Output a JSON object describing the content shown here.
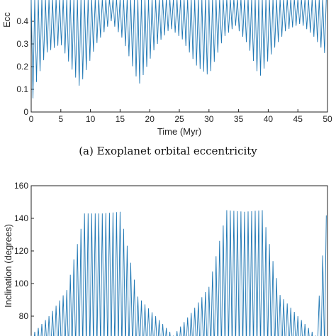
{
  "chart_data": [
    {
      "type": "line",
      "title": "",
      "caption": "(a)  Exoplanet orbital eccentricity",
      "xlabel": "Time (Myr)",
      "ylabel": "Ecc",
      "xlim": [
        0,
        50
      ],
      "ylim": [
        0,
        0.5
      ],
      "xticks": [
        "0",
        "5",
        "10",
        "15",
        "20",
        "25",
        "30",
        "35",
        "40",
        "45",
        "50"
      ],
      "yticks": [
        "0",
        "0.1",
        "0.2",
        "0.3",
        "0.4"
      ],
      "color": "#1f77b4",
      "grid": false,
      "legend": "none",
      "series": [
        {
          "envelope_upper": 0.5,
          "envelope_lower_x": [
            0,
            0.5,
            2.5,
            5.0,
            8.2,
            11.0,
            13.5,
            15.5,
            18.2,
            21.0,
            23.5,
            25.5,
            28.0,
            30.0,
            32.5,
            34.5,
            36.5,
            38.5,
            41.0,
            43.0,
            45.5,
            47.5,
            49.5,
            50
          ],
          "envelope_lower_y": [
            0.0,
            0.1,
            0.26,
            0.3,
            0.11,
            0.3,
            0.4,
            0.32,
            0.12,
            0.29,
            0.37,
            0.32,
            0.2,
            0.16,
            0.33,
            0.38,
            0.3,
            0.15,
            0.28,
            0.36,
            0.39,
            0.34,
            0.26,
            0.24
          ],
          "oscillation_period": 0.6
        }
      ]
    },
    {
      "type": "line",
      "title": "",
      "caption": "",
      "xlabel": "",
      "ylabel": "Inclination (degrees)",
      "xlim": [
        0,
        50
      ],
      "ylim": [
        60,
        160
      ],
      "yticks": [
        "80",
        "100",
        "120",
        "140",
        "160"
      ],
      "color": "#1f77b4",
      "grid": false,
      "legend": "none",
      "series": [
        {
          "center_x": [
            0,
            3,
            6,
            9,
            12,
            15,
            18,
            21,
            24,
            27,
            30,
            33,
            36,
            39,
            42,
            45,
            48,
            50
          ],
          "center_y": [
            68,
            80,
            96,
            108,
            112,
            104,
            92,
            80,
            68,
            82,
            98,
            110,
            113,
            106,
            93,
            80,
            68,
            72
          ],
          "upper_y": [
            68,
            80,
            96,
            143,
            143,
            144,
            92,
            80,
            68,
            82,
            98,
            145,
            144,
            145,
            93,
            80,
            68,
            150
          ],
          "lower_y": [
            60,
            60,
            60,
            60,
            60,
            60,
            60,
            60,
            60,
            60,
            60,
            60,
            60,
            60,
            60,
            60,
            60,
            60
          ],
          "oscillation_period": 0.6
        }
      ]
    }
  ]
}
